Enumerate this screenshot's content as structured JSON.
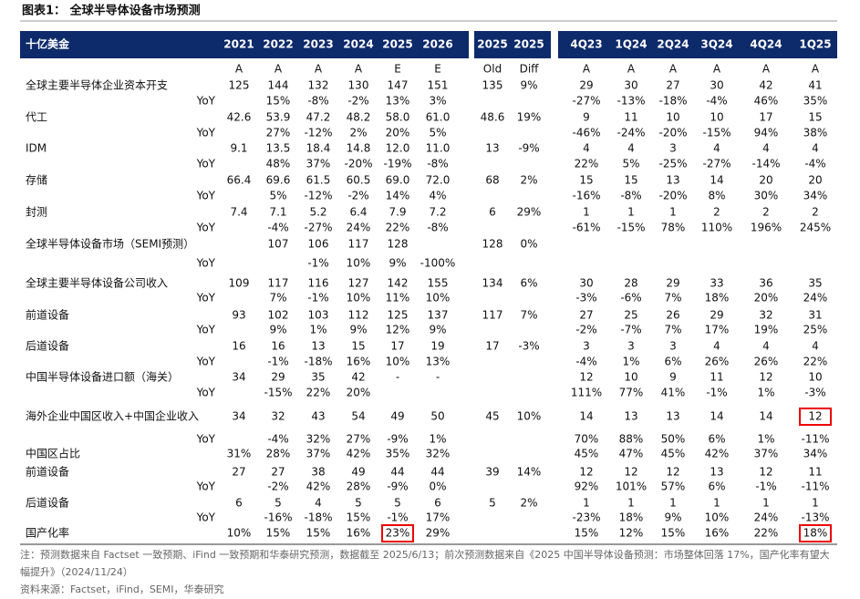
{
  "title": "图表1：  全球半导体设备市场预测",
  "header": {
    "unit_label": "十亿美金",
    "columns": [
      "2021",
      "2022",
      "2023",
      "2024",
      "2025",
      "2026",
      "2025",
      "2025",
      "4Q23",
      "1Q24",
      "2Q24",
      "3Q24",
      "4Q24",
      "1Q25"
    ],
    "flags": [
      "A",
      "A",
      "A",
      "A",
      "E",
      "E",
      "Old",
      "Diff",
      "A",
      "A",
      "A",
      "A",
      "A",
      "A"
    ]
  },
  "rows": [
    {
      "label": "全球主要半导体企业资本开支",
      "cells": [
        "125",
        "144",
        "132",
        "130",
        "147",
        "151",
        "135",
        "9%",
        "29",
        "30",
        "27",
        "30",
        "42",
        "41"
      ]
    },
    {
      "label": "YoY",
      "cells": [
        null,
        "15%",
        "-8%",
        "-2%",
        "13%",
        "3%",
        null,
        null,
        "-27%",
        "-13%",
        "-18%",
        "-4%",
        "46%",
        "35%"
      ]
    },
    {
      "label": "代工",
      "cells": [
        "42.6",
        "53.9",
        "47.2",
        "48.2",
        "58.0",
        "61.0",
        "48.6",
        "19%",
        "9",
        "11",
        "10",
        "10",
        "17",
        "15"
      ]
    },
    {
      "label": "YoY",
      "cells": [
        null,
        "27%",
        "-12%",
        "2%",
        "20%",
        "5%",
        null,
        null,
        "-46%",
        "-24%",
        "-20%",
        "-15%",
        "94%",
        "38%"
      ]
    },
    {
      "label": "IDM",
      "cells": [
        "9.1",
        "13.5",
        "18.4",
        "14.8",
        "12.0",
        "11.0",
        "13",
        "-9%",
        "4",
        "4",
        "3",
        "4",
        "4",
        "4"
      ]
    },
    {
      "label": "YoY",
      "cells": [
        null,
        "48%",
        "37%",
        "-20%",
        "-19%",
        "-8%",
        null,
        null,
        "22%",
        "5%",
        "-25%",
        "-27%",
        "-14%",
        "-4%"
      ]
    },
    {
      "label": "存储",
      "cells": [
        "66.4",
        "69.6",
        "61.5",
        "60.5",
        "69.0",
        "72.0",
        "68",
        "2%",
        "15",
        "15",
        "13",
        "14",
        "20",
        "20"
      ]
    },
    {
      "label": "YoY",
      "cells": [
        null,
        "5%",
        "-12%",
        "-2%",
        "14%",
        "4%",
        null,
        null,
        "-16%",
        "-8%",
        "-20%",
        "8%",
        "30%",
        "34%"
      ]
    },
    {
      "label": "封测",
      "cells": [
        "7.4",
        "7.1",
        "5.2",
        "6.4",
        "7.9",
        "7.2",
        "6",
        "29%",
        "1",
        "1",
        "1",
        "2",
        "2",
        "2"
      ]
    },
    {
      "label": "YoY",
      "cells": [
        null,
        "-4%",
        "-27%",
        "24%",
        "22%",
        "-8%",
        null,
        null,
        "-61%",
        "-15%",
        "78%",
        "110%",
        "196%",
        "245%"
      ]
    },
    {
      "label": "全球半导体设备市场（SEMI预测）",
      "cells": [
        null,
        "107",
        "106",
        "117",
        "128",
        null,
        "128",
        "0%",
        null,
        null,
        null,
        null,
        null,
        null
      ]
    },
    {
      "label": "YoY",
      "cells": [
        null,
        null,
        "-1%",
        "10%",
        "9%",
        "-100%",
        null,
        null,
        null,
        null,
        null,
        null,
        null,
        null
      ]
    },
    {
      "label": "全球主要半导体设备公司收入",
      "cells": [
        "109",
        "117",
        "116",
        "127",
        "142",
        "155",
        "134",
        "6%",
        "30",
        "28",
        "29",
        "33",
        "36",
        "35"
      ]
    },
    {
      "label": "YoY",
      "cells": [
        null,
        "7%",
        "-1%",
        "10%",
        "11%",
        "10%",
        null,
        null,
        "-3%",
        "-6%",
        "7%",
        "18%",
        "20%",
        "24%"
      ]
    },
    {
      "label": "前道设备",
      "cells": [
        "93",
        "102",
        "103",
        "112",
        "125",
        "137",
        "117",
        "7%",
        "27",
        "25",
        "26",
        "29",
        "32",
        "31"
      ]
    },
    {
      "label": "YoY",
      "cells": [
        null,
        "9%",
        "1%",
        "9%",
        "12%",
        "9%",
        null,
        null,
        "-2%",
        "-7%",
        "7%",
        "17%",
        "19%",
        "25%"
      ]
    },
    {
      "label": "后道设备",
      "cells": [
        "16",
        "16",
        "13",
        "15",
        "17",
        "19",
        "17",
        "-3%",
        "3",
        "3",
        "3",
        "4",
        "4",
        "4"
      ]
    },
    {
      "label": "YoY",
      "cells": [
        null,
        "-1%",
        "-18%",
        "16%",
        "10%",
        "13%",
        null,
        null,
        "-4%",
        "1%",
        "6%",
        "26%",
        "26%",
        "22%"
      ]
    },
    {
      "label": "中国半导体设备进口额（海关）",
      "cells": [
        "34",
        "29",
        "35",
        "42",
        "-",
        "-",
        null,
        null,
        "12",
        "10",
        "9",
        "11",
        "12",
        "10"
      ]
    },
    {
      "label": "YoY",
      "cells": [
        null,
        "-15%",
        "22%",
        "20%",
        null,
        null,
        null,
        null,
        "111%",
        "77%",
        "41%",
        "-1%",
        "1%",
        "-3%"
      ]
    },
    {
      "label": "海外企业中国区收入+中国企业收入",
      "cells": [
        "34",
        "32",
        "43",
        "54",
        "49",
        "50",
        "45",
        "10%",
        "14",
        "13",
        "13",
        "14",
        "14",
        "12"
      ]
    },
    {
      "label": "YoY",
      "cells": [
        null,
        "-4%",
        "32%",
        "27%",
        "-9%",
        "1%",
        null,
        null,
        "70%",
        "88%",
        "50%",
        "6%",
        "1%",
        "-11%"
      ]
    },
    {
      "label": "中国区占比",
      "cells": [
        "31%",
        "28%",
        "37%",
        "42%",
        "35%",
        "32%",
        null,
        null,
        "45%",
        "47%",
        "45%",
        "42%",
        "37%",
        "34%"
      ]
    },
    {
      "label": "前道设备",
      "cells": [
        "27",
        "27",
        "38",
        "49",
        "44",
        "44",
        "39",
        "14%",
        "12",
        "12",
        "12",
        "13",
        "12",
        "11"
      ]
    },
    {
      "label": "YoY",
      "cells": [
        null,
        "-2%",
        "42%",
        "28%",
        "-9%",
        "0%",
        null,
        null,
        "92%",
        "101%",
        "57%",
        "6%",
        "-1%",
        "-11%"
      ]
    },
    {
      "label": "后道设备",
      "cells": [
        "6",
        "5",
        "4",
        "5",
        "5",
        "6",
        "5",
        "2%",
        "1",
        "1",
        "1",
        "1",
        "1",
        "1"
      ]
    },
    {
      "label": "YoY",
      "cells": [
        null,
        "-16%",
        "-18%",
        "15%",
        "-1%",
        "17%",
        null,
        null,
        "-23%",
        "18%",
        "9%",
        "10%",
        "24%",
        "-13%"
      ]
    },
    {
      "label": "国产化率",
      "cells": [
        "10%",
        "15%",
        "15%",
        "16%",
        "23%",
        "29%",
        null,
        null,
        "15%",
        "12%",
        "15%",
        "16%",
        "22%",
        "18%"
      ]
    }
  ],
  "note": "注：预测数据来自 Factset 一致预期、iFind 一致预期和华泰研究预测，数据截至 2025/6/13；前次预测数据来自《2025 中国半导体设备预测：市场整体回落 17%，国产化率有望大幅提升》（2024/11/24）",
  "source": "资料来源：Factset，iFind，SEMI，华泰研究"
}
